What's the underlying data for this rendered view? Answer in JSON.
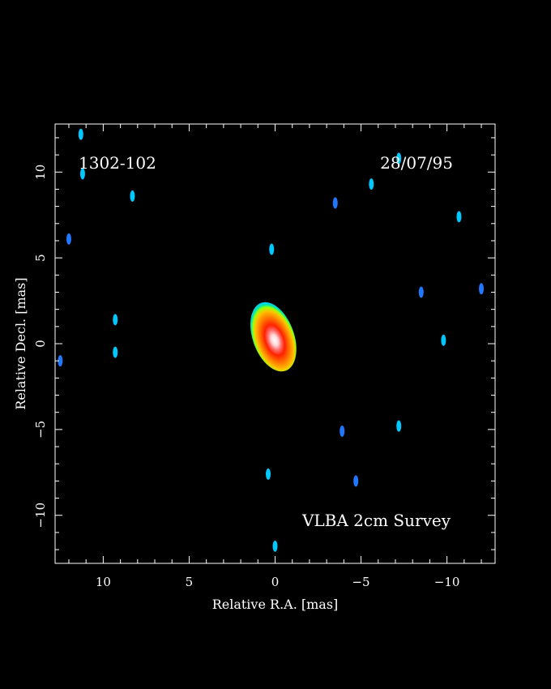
{
  "chart_data": {
    "type": "heatmap",
    "title": "",
    "source_name": "1302-102",
    "epoch": "28/07/95",
    "survey": "VLBA 2cm Survey",
    "xlabel": "Relative R.A. [mas]",
    "ylabel": "Relative Decl. [mas]",
    "xlim": [
      12.8,
      -12.8
    ],
    "ylim": [
      -12.8,
      12.8
    ],
    "x_ticks": [
      "10",
      "5",
      "0",
      "−5",
      "−10"
    ],
    "x_tick_values": [
      10,
      5,
      0,
      -5,
      -10
    ],
    "y_ticks": [
      "−10",
      "−5",
      "0",
      "5",
      "10"
    ],
    "y_tick_values": [
      -10,
      -5,
      0,
      5,
      10
    ],
    "background": "#000000",
    "colormap": [
      "#2222ff",
      "#00c8ff",
      "#00e8c8",
      "#88ff00",
      "#ffd000",
      "#ff8800",
      "#ff2000",
      "#ff6060",
      "#ffd8d8"
    ],
    "core": {
      "ra": 0.1,
      "dec": 0.4,
      "extent_ra": 2.4,
      "extent_dec": 4.2,
      "position_angle_deg": -20
    },
    "noise_components": [
      {
        "ra": 11.3,
        "dec": 12.2,
        "color": "#00c8ff"
      },
      {
        "ra": 11.2,
        "dec": 9.9,
        "color": "#00c8ff"
      },
      {
        "ra": 8.3,
        "dec": 8.6,
        "color": "#00c8ff"
      },
      {
        "ra": 12.0,
        "dec": 6.1,
        "color": "#2277ff"
      },
      {
        "ra": 9.3,
        "dec": 1.4,
        "color": "#00c8ff"
      },
      {
        "ra": 9.3,
        "dec": -0.5,
        "color": "#00c8ff"
      },
      {
        "ra": 12.5,
        "dec": -1.0,
        "color": "#2277ff"
      },
      {
        "ra": 0.2,
        "dec": 5.5,
        "color": "#00c8ff"
      },
      {
        "ra": -3.5,
        "dec": 8.2,
        "color": "#2277ff"
      },
      {
        "ra": -5.6,
        "dec": 9.3,
        "color": "#00c8ff"
      },
      {
        "ra": -7.2,
        "dec": 10.8,
        "color": "#00c8ff"
      },
      {
        "ra": -10.7,
        "dec": 7.4,
        "color": "#00c8ff"
      },
      {
        "ra": -8.5,
        "dec": 3.0,
        "color": "#2277ff"
      },
      {
        "ra": -12.0,
        "dec": 3.2,
        "color": "#2277ff"
      },
      {
        "ra": -9.8,
        "dec": 0.2,
        "color": "#00c8ff"
      },
      {
        "ra": -3.9,
        "dec": -5.1,
        "color": "#2277ff"
      },
      {
        "ra": -7.2,
        "dec": -4.8,
        "color": "#00c8ff"
      },
      {
        "ra": 0.4,
        "dec": -7.6,
        "color": "#00c8ff"
      },
      {
        "ra": -4.7,
        "dec": -8.0,
        "color": "#2277ff"
      },
      {
        "ra": 0.0,
        "dec": -11.8,
        "color": "#00c8ff"
      }
    ]
  }
}
